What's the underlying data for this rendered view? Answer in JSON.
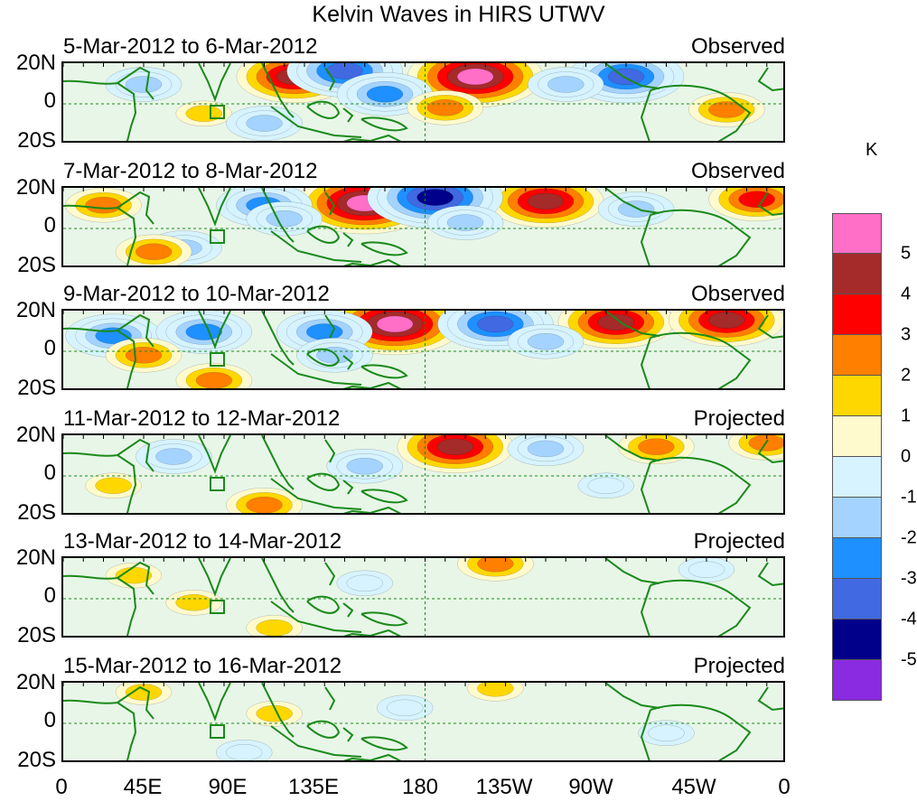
{
  "title": "Kelvin Waves in HIRS UTWV",
  "panels": [
    {
      "period": "5-Mar-2012 to 6-Mar-2012",
      "status": "Observed"
    },
    {
      "period": "7-Mar-2012 to 8-Mar-2012",
      "status": "Observed"
    },
    {
      "period": "9-Mar-2012 to 10-Mar-2012",
      "status": "Observed"
    },
    {
      "period": "11-Mar-2012 to 12-Mar-2012",
      "status": "Projected"
    },
    {
      "period": "13-Mar-2012 to 14-Mar-2012",
      "status": "Projected"
    },
    {
      "period": "15-Mar-2012 to 16-Mar-2012",
      "status": "Projected"
    }
  ],
  "y_labels": [
    "20N",
    "0",
    "20S"
  ],
  "x_labels": [
    "0",
    "45E",
    "90E",
    "135E",
    "180",
    "135W",
    "90W",
    "45W",
    "0"
  ],
  "colorbar": {
    "unit": "K",
    "labels": [
      "5",
      "4",
      "3",
      "2",
      "1",
      "0",
      "-1",
      "-2",
      "-3",
      "-4",
      "-5"
    ],
    "colors": [
      "#ff6ec7",
      "#a52a2a",
      "#ff0000",
      "#ff7f00",
      "#ffd700",
      "#fffacd",
      "#d6f3ff",
      "#a4d3ff",
      "#1e90ff",
      "#4169e1",
      "#00008b",
      "#8a2be2"
    ]
  },
  "anomalies": [
    [
      {
        "lon": 115,
        "lat": 14,
        "v": 4
      },
      {
        "lon": 140,
        "lat": 17,
        "v": -4
      },
      {
        "lon": 205,
        "lat": 14,
        "v": 5
      },
      {
        "lon": 280,
        "lat": 14,
        "v": -4
      },
      {
        "lon": 160,
        "lat": 5,
        "v": -3
      },
      {
        "lon": 250,
        "lat": 10,
        "v": -2
      },
      {
        "lon": 40,
        "lat": 10,
        "v": -2
      },
      {
        "lon": 70,
        "lat": -5,
        "v": 1
      },
      {
        "lon": 330,
        "lat": -3,
        "v": 2
      },
      {
        "lon": 100,
        "lat": -10,
        "v": -2
      },
      {
        "lon": 190,
        "lat": -2,
        "v": 2
      }
    ],
    [
      {
        "lon": 150,
        "lat": 13,
        "v": 5
      },
      {
        "lon": 240,
        "lat": 14,
        "v": 4
      },
      {
        "lon": 100,
        "lat": 12,
        "v": -3
      },
      {
        "lon": 185,
        "lat": 16,
        "v": -5
      },
      {
        "lon": 110,
        "lat": 5,
        "v": -2
      },
      {
        "lon": 200,
        "lat": 3,
        "v": -2
      },
      {
        "lon": 345,
        "lat": 15,
        "v": 3
      },
      {
        "lon": 285,
        "lat": 10,
        "v": -2
      },
      {
        "lon": 20,
        "lat": 12,
        "v": 2
      },
      {
        "lon": 60,
        "lat": -10,
        "v": -2
      },
      {
        "lon": 45,
        "lat": -12,
        "v": 2
      }
    ],
    [
      {
        "lon": 165,
        "lat": 14,
        "v": 5
      },
      {
        "lon": 275,
        "lat": 15,
        "v": 4
      },
      {
        "lon": 330,
        "lat": 16,
        "v": 4
      },
      {
        "lon": 215,
        "lat": 14,
        "v": -4
      },
      {
        "lon": 130,
        "lat": 10,
        "v": -3
      },
      {
        "lon": 25,
        "lat": 8,
        "v": -3
      },
      {
        "lon": 70,
        "lat": 10,
        "v": -3
      },
      {
        "lon": 75,
        "lat": -15,
        "v": 2
      },
      {
        "lon": 135,
        "lat": -2,
        "v": -2
      },
      {
        "lon": 240,
        "lat": 5,
        "v": -2
      },
      {
        "lon": 40,
        "lat": -2,
        "v": 2
      }
    ],
    [
      {
        "lon": 195,
        "lat": 15,
        "v": 4
      },
      {
        "lon": 295,
        "lat": 15,
        "v": 2
      },
      {
        "lon": 350,
        "lat": 17,
        "v": 2
      },
      {
        "lon": 150,
        "lat": 5,
        "v": -2
      },
      {
        "lon": 240,
        "lat": 14,
        "v": -2
      },
      {
        "lon": 100,
        "lat": -15,
        "v": 2
      },
      {
        "lon": 55,
        "lat": 10,
        "v": -2
      },
      {
        "lon": 270,
        "lat": -5,
        "v": -1
      },
      {
        "lon": 25,
        "lat": -5,
        "v": 1
      }
    ],
    [
      {
        "lon": 215,
        "lat": 18,
        "v": 2
      },
      {
        "lon": 105,
        "lat": -15,
        "v": 1
      },
      {
        "lon": 65,
        "lat": -2,
        "v": 1
      },
      {
        "lon": 150,
        "lat": 8,
        "v": -1
      },
      {
        "lon": 320,
        "lat": 15,
        "v": -1
      },
      {
        "lon": 35,
        "lat": 12,
        "v": 1
      }
    ],
    [
      {
        "lon": 215,
        "lat": 18,
        "v": 1
      },
      {
        "lon": 40,
        "lat": 16,
        "v": 1
      },
      {
        "lon": 105,
        "lat": 5,
        "v": 1
      },
      {
        "lon": 90,
        "lat": -15,
        "v": -1
      },
      {
        "lon": 170,
        "lat": 8,
        "v": -1
      },
      {
        "lon": 300,
        "lat": -5,
        "v": -1
      }
    ]
  ]
}
